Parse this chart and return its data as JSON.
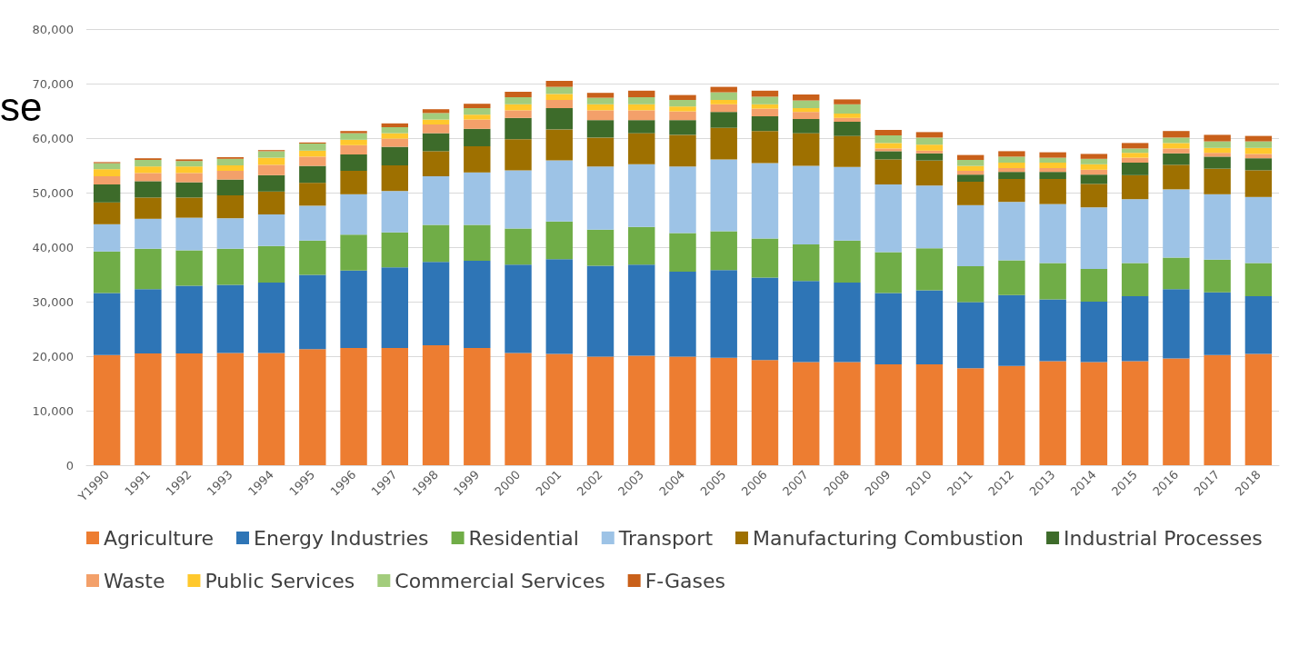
{
  "chart_data": {
    "type": "bar",
    "stacked": true,
    "categories": [
      "Y1990",
      "1991",
      "1992",
      "1993",
      "1994",
      "1995",
      "1996",
      "1997",
      "1998",
      "1999",
      "2000",
      "2001",
      "2002",
      "2003",
      "2004",
      "2005",
      "2006",
      "2007",
      "2008",
      "2009",
      "2010",
      "2011",
      "2012",
      "2013",
      "2014",
      "2015",
      "2016",
      "2017",
      "2018"
    ],
    "series": [
      {
        "name": "Agriculture",
        "color": "#ed7d31",
        "values": [
          20200,
          20500,
          20500,
          20600,
          20600,
          21300,
          21500,
          21500,
          22000,
          21500,
          20600,
          20400,
          19900,
          20100,
          19900,
          19700,
          19300,
          18900,
          18900,
          18500,
          18500,
          17800,
          18200,
          19100,
          18900,
          19100,
          19600,
          20200,
          20400
        ]
      },
      {
        "name": "Energy Industries",
        "color": "#2e75b6",
        "values": [
          11400,
          11800,
          12400,
          12500,
          12900,
          13600,
          14200,
          14800,
          15300,
          16000,
          16200,
          17400,
          16700,
          16700,
          15600,
          16100,
          15100,
          14900,
          14600,
          13100,
          13600,
          12100,
          13000,
          11300,
          11100,
          11900,
          12700,
          11500,
          10600
        ]
      },
      {
        "name": "Residential",
        "color": "#70ad47",
        "values": [
          7600,
          7400,
          6500,
          6600,
          6700,
          6300,
          6600,
          6400,
          6800,
          6600,
          6600,
          6900,
          6600,
          6900,
          7100,
          7100,
          7200,
          6700,
          7700,
          7500,
          7700,
          6600,
          6400,
          6700,
          6000,
          6100,
          5800,
          6000,
          6100
        ]
      },
      {
        "name": "Transport",
        "color": "#9dc3e6",
        "values": [
          5000,
          5500,
          6000,
          5600,
          5800,
          6400,
          7400,
          7600,
          8900,
          9600,
          10700,
          11200,
          11600,
          11500,
          12200,
          13200,
          13800,
          14400,
          13500,
          12400,
          11500,
          11200,
          10700,
          10800,
          11300,
          11700,
          12500,
          12000,
          12100
        ]
      },
      {
        "name": "Manufacturing Combustion",
        "color": "#9e7000",
        "values": [
          4000,
          3900,
          3700,
          4200,
          4200,
          4200,
          4300,
          4700,
          4600,
          4800,
          5700,
          5700,
          5300,
          5700,
          5800,
          5800,
          5900,
          6000,
          5700,
          4600,
          4600,
          4300,
          4200,
          4600,
          4300,
          4400,
          4500,
          4700,
          4900
        ]
      },
      {
        "name": "Industrial Processes",
        "color": "#3d6b2a",
        "values": [
          3300,
          3000,
          2800,
          2900,
          3000,
          3100,
          3000,
          3400,
          3300,
          3200,
          3900,
          3900,
          3200,
          2400,
          2700,
          2900,
          2700,
          2600,
          2600,
          1500,
          1300,
          1300,
          1300,
          1300,
          1700,
          2300,
          2100,
          2200,
          2200
        ]
      },
      {
        "name": "Waste",
        "color": "#f3a06a",
        "values": [
          1500,
          1500,
          1700,
          1600,
          1900,
          1700,
          1700,
          1500,
          1600,
          1700,
          1400,
          1500,
          1800,
          1800,
          1600,
          1400,
          1400,
          1300,
          700,
          500,
          500,
          700,
          700,
          700,
          900,
          900,
          900,
          700,
          800
        ]
      },
      {
        "name": "Public Services",
        "color": "#ffc82c",
        "values": [
          1300,
          1200,
          1200,
          1000,
          1300,
          1100,
          1000,
          1000,
          900,
          900,
          1100,
          1100,
          1100,
          1100,
          900,
          800,
          800,
          700,
          800,
          1000,
          1100,
          900,
          1000,
          1000,
          1000,
          900,
          1000,
          900,
          1100
        ]
      },
      {
        "name": "Commercial Services",
        "color": "#a2cc7c",
        "values": [
          1100,
          1200,
          1000,
          1200,
          1200,
          1300,
          1200,
          1100,
          1200,
          1200,
          1300,
          1300,
          1200,
          1300,
          1200,
          1400,
          1400,
          1400,
          1700,
          1400,
          1300,
          1100,
          1100,
          900,
          1000,
          800,
          1000,
          1200,
          1200
        ]
      },
      {
        "name": "F-Gases",
        "color": "#c9601a",
        "values": [
          200,
          300,
          300,
          300,
          200,
          200,
          400,
          700,
          700,
          800,
          1000,
          1100,
          900,
          1200,
          900,
          1000,
          1100,
          1100,
          900,
          1000,
          1000,
          900,
          1000,
          1000,
          900,
          1000,
          1200,
          1200,
          1000
        ]
      }
    ],
    "ylim": [
      0,
      80000
    ],
    "yticks": [
      0,
      {
        "value": 10000,
        "label": "10,000"
      },
      {
        "value": 20000,
        "label": "20,000"
      },
      {
        "value": 30000,
        "label": "30,000"
      },
      {
        "value": 40000,
        "label": "40,000"
      },
      {
        "value": 50000,
        "label": "50,000"
      },
      {
        "value": 60000,
        "label": "60,000"
      },
      {
        "value": 70000,
        "label": "70,000"
      },
      {
        "value": 80000,
        "label": "80,000"
      }
    ],
    "grid": "y",
    "legend": "bottom",
    "annotations": [
      "se"
    ]
  }
}
